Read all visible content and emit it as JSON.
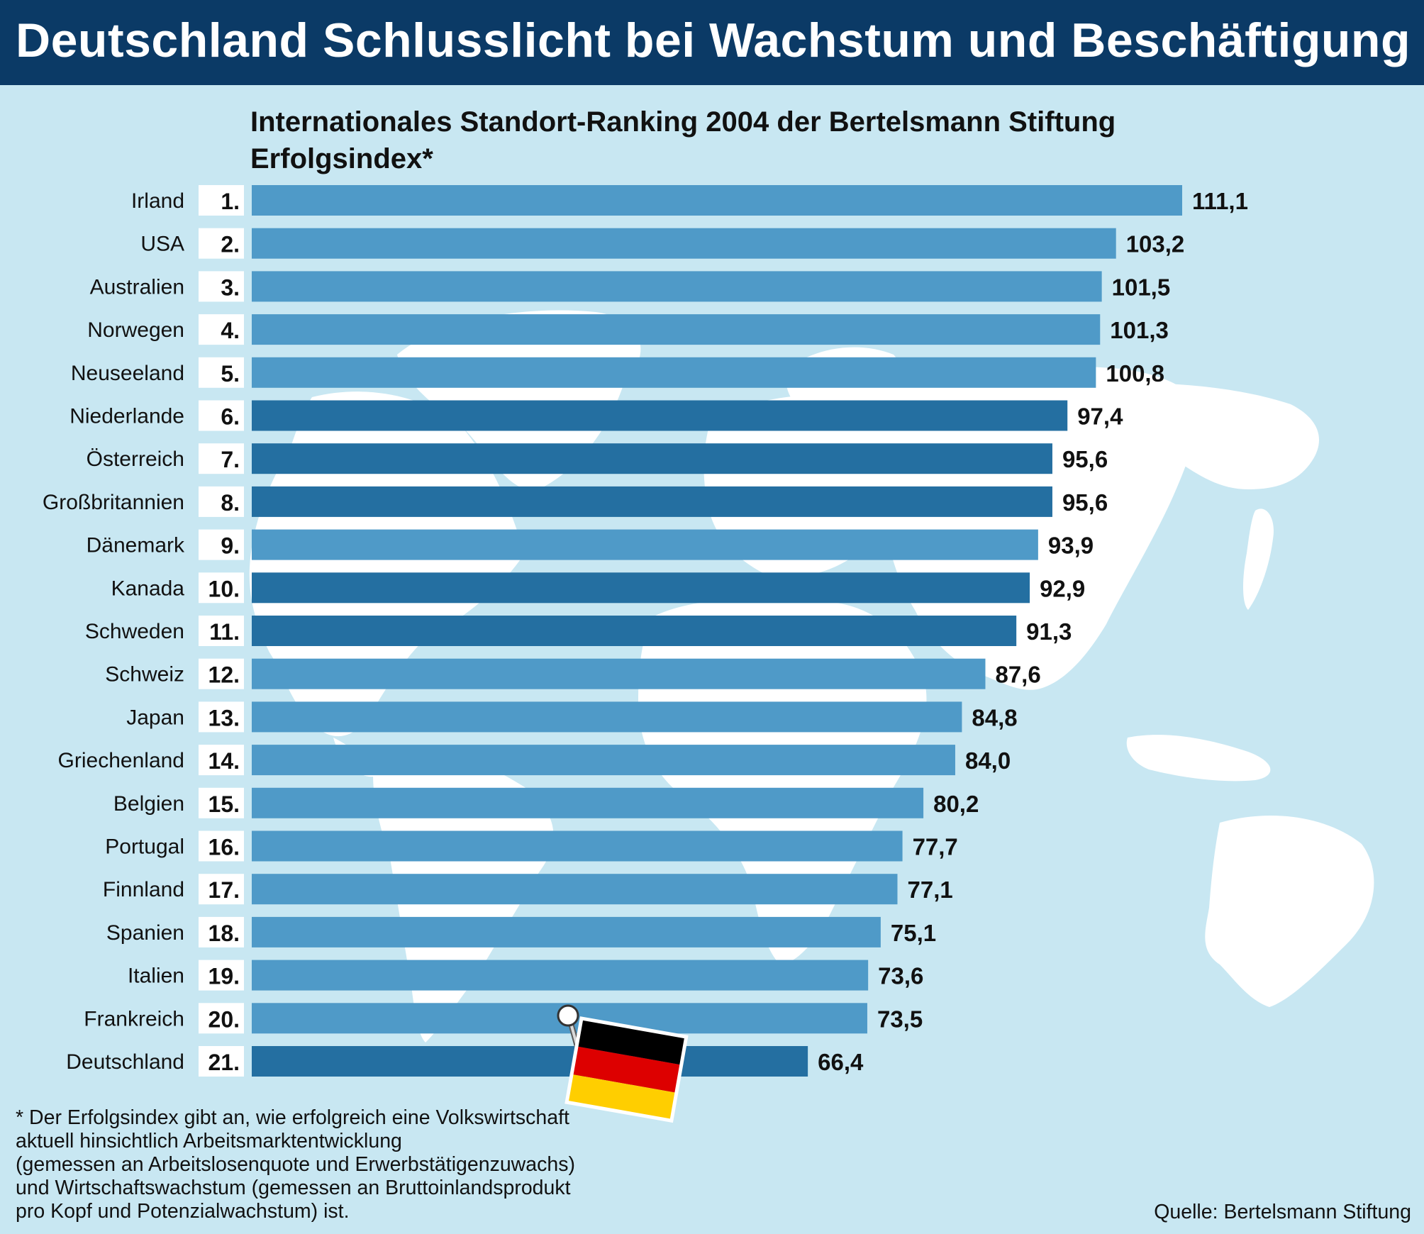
{
  "header": {
    "title": "Deutschland Schlusslicht bei Wachstum und Beschäftigung"
  },
  "colors": {
    "header_bg": "#0b3a66",
    "background": "#c8e7f2",
    "bar_light": "#4f9ac8",
    "bar_dark": "#246fa1",
    "rank_box": "#ffffff",
    "map_land": "#ffffff"
  },
  "chart_data": {
    "type": "bar",
    "orientation": "horizontal",
    "title": "Internationales Standort-Ranking 2004 der Bertelsmann Stiftung",
    "subtitle": "Erfolgsindex*",
    "categories": [
      "Irland",
      "USA",
      "Australien",
      "Norwegen",
      "Neuseeland",
      "Niederlande",
      "Österreich",
      "Großbritannien",
      "Dänemark",
      "Kanada",
      "Schweden",
      "Schweiz",
      "Japan",
      "Griechenland",
      "Belgien",
      "Portugal",
      "Finnland",
      "Spanien",
      "Italien",
      "Frankreich",
      "Deutschland"
    ],
    "ranks": [
      "1.",
      "2.",
      "3.",
      "4.",
      "5.",
      "6.",
      "7.",
      "8.",
      "9.",
      "10.",
      "11.",
      "12.",
      "13.",
      "14.",
      "15.",
      "16.",
      "17.",
      "18.",
      "19.",
      "20.",
      "21."
    ],
    "values": [
      111.1,
      103.2,
      101.5,
      101.3,
      100.8,
      97.4,
      95.6,
      95.6,
      93.9,
      92.9,
      91.3,
      87.6,
      84.8,
      84.0,
      80.2,
      77.7,
      77.1,
      75.1,
      73.6,
      73.5,
      66.4
    ],
    "value_labels": [
      "111,1",
      "103,2",
      "101,5",
      "101,3",
      "100,8",
      "97,4",
      "95,6",
      "95,6",
      "93,9",
      "92,9",
      "91,3",
      "87,6",
      "84,8",
      "84,0",
      "80,2",
      "77,7",
      "77,1",
      "75,1",
      "73,6",
      "73,5",
      "66,4"
    ],
    "xlim": [
      0,
      111.1
    ],
    "xlabel": "",
    "ylabel": "",
    "grid": false,
    "highlight": "Deutschland",
    "highlight_icon": "german-flag-pin-icon"
  },
  "footnote": {
    "lines": [
      "* Der Erfolgsindex gibt an, wie erfolgreich eine Volkswirtschaft",
      "aktuell hinsichtlich Arbeitsmarktentwicklung",
      "(gemessen an Arbeitslosenquote und Erwerbstätigenzuwachs)",
      "und Wirtschaftswachstum (gemessen an Bruttoinlandsprodukt",
      "pro Kopf und Potenzialwachstum) ist."
    ]
  },
  "source": "Quelle: Bertelsmann Stiftung"
}
